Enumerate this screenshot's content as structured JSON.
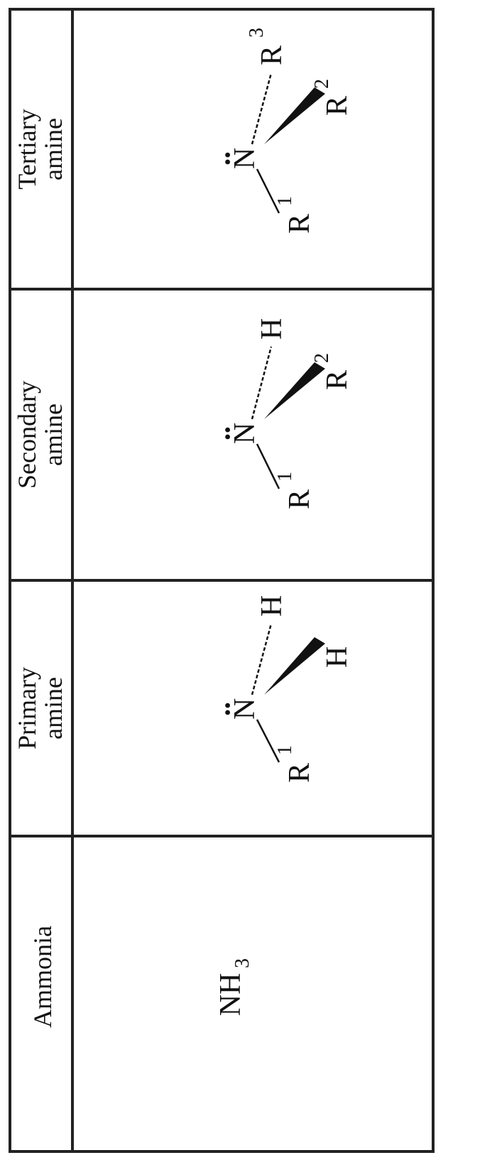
{
  "table": {
    "headers": [
      "Ammonia",
      "Primary amine",
      "Secondary amine",
      "Tertiary amine"
    ],
    "header_lines": [
      [
        "Ammonia"
      ],
      [
        "Primary",
        "amine"
      ],
      [
        "Secondary",
        "amine"
      ],
      [
        "Tertiary",
        "amine"
      ]
    ]
  },
  "structures": {
    "ammonia": {
      "formula_base": "NH",
      "formula_sub": "3"
    },
    "primary": {
      "center": "N",
      "lone_pair": "••",
      "left_sub": {
        "atom": "R",
        "sup": "1"
      },
      "wedge_sub": {
        "atom": "H",
        "sup": ""
      },
      "dash_sub": {
        "atom": "H",
        "sup": ""
      }
    },
    "secondary": {
      "center": "N",
      "lone_pair": "••",
      "left_sub": {
        "atom": "R",
        "sup": "1"
      },
      "wedge_sub": {
        "atom": "R",
        "sup": "2"
      },
      "dash_sub": {
        "atom": "H",
        "sup": ""
      }
    },
    "tertiary": {
      "center": "N",
      "lone_pair": "••",
      "left_sub": {
        "atom": "R",
        "sup": "1"
      },
      "wedge_sub": {
        "atom": "R",
        "sup": "2"
      },
      "dash_sub": {
        "atom": "R",
        "sup": "3"
      }
    }
  }
}
